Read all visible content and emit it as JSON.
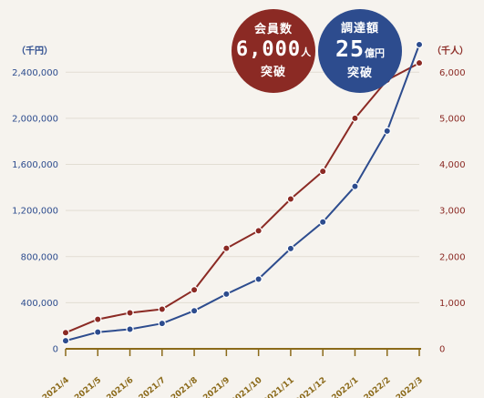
{
  "badges": {
    "members": {
      "line1": "会員数",
      "number": "6,000",
      "unit": "人",
      "line3": "突破",
      "color": "#8b2a24"
    },
    "funding": {
      "line1": "調達額",
      "number": "25",
      "unit": "億円",
      "line3": "突破",
      "color": "#2d4c8e"
    }
  },
  "chart_data": {
    "type": "line",
    "left_axis_unit": "（千円）",
    "right_axis_unit": "（千人）",
    "categories": [
      "2021/4",
      "2021/5",
      "2021/6",
      "2021/7",
      "2021/8",
      "2021/9",
      "2021/10",
      "2021/11",
      "2021/12",
      "2022/1",
      "2022/2",
      "2022/3"
    ],
    "left_ticks": [
      "0",
      "400,000",
      "800,000",
      "1,200,000",
      "1,600,000",
      "2,000,000",
      "2,400,000"
    ],
    "right_ticks": [
      "0",
      "1,000",
      "2,000",
      "3,000",
      "4,000",
      "5,000",
      "6,000"
    ],
    "ylim_left": [
      0,
      2600000
    ],
    "ylim_right": [
      0,
      6500
    ],
    "series": [
      {
        "axis": "right",
        "color": "#8b2a24",
        "values": [
          350,
          640,
          780,
          860,
          1280,
          2180,
          2560,
          3250,
          3850,
          5000,
          5830,
          6200
        ]
      },
      {
        "axis": "left",
        "color": "#2d4c8e",
        "values": [
          70000,
          145000,
          170000,
          220000,
          330000,
          475000,
          605000,
          870000,
          1100000,
          1410000,
          1890000,
          2640000
        ]
      }
    ],
    "colors": {
      "left_axis": "#2d4c8e",
      "right_axis": "#8b2a24",
      "x_axis": "#8b6a1a",
      "grid": "#e2ddd3"
    }
  }
}
